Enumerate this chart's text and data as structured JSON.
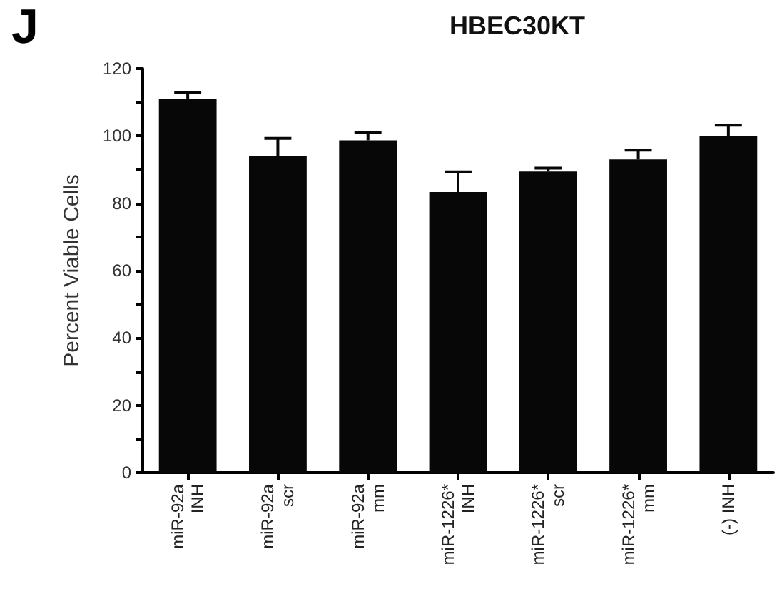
{
  "chart_data": {
    "type": "bar",
    "title": "HBEC30KT",
    "ylabel": "Percent Viable Cells",
    "annotations": [
      "J"
    ],
    "categories": [
      "miR-92a\nINH",
      "miR-92a\nscr",
      "miR-92a\nmm",
      "miR-1226*\nINH",
      "miR-1226*\nscr",
      "miR-1226*\nmm",
      "(-) INH"
    ],
    "series": [
      {
        "color": "#070707",
        "values": [
          111,
          94,
          98.7,
          83.3,
          89.4,
          93,
          100
        ],
        "errors": [
          [
            111,
            113
          ],
          [
            94,
            99.3
          ],
          [
            98.7,
            101.1
          ],
          [
            83.3,
            89.3
          ],
          [
            89.4,
            90.4
          ],
          [
            93,
            95.8
          ],
          [
            100,
            103.2
          ]
        ]
      }
    ],
    "ylim": [
      0,
      120
    ],
    "yticks": [
      0,
      {
        "value": 10,
        "label": null
      },
      20,
      {
        "value": 30,
        "label": null
      },
      40,
      {
        "value": 50,
        "label": null
      },
      60,
      {
        "value": 70,
        "label": null
      },
      80,
      {
        "value": 90,
        "label": null
      },
      100,
      {
        "value": 110,
        "label": null
      },
      120
    ],
    "grid": false
  }
}
